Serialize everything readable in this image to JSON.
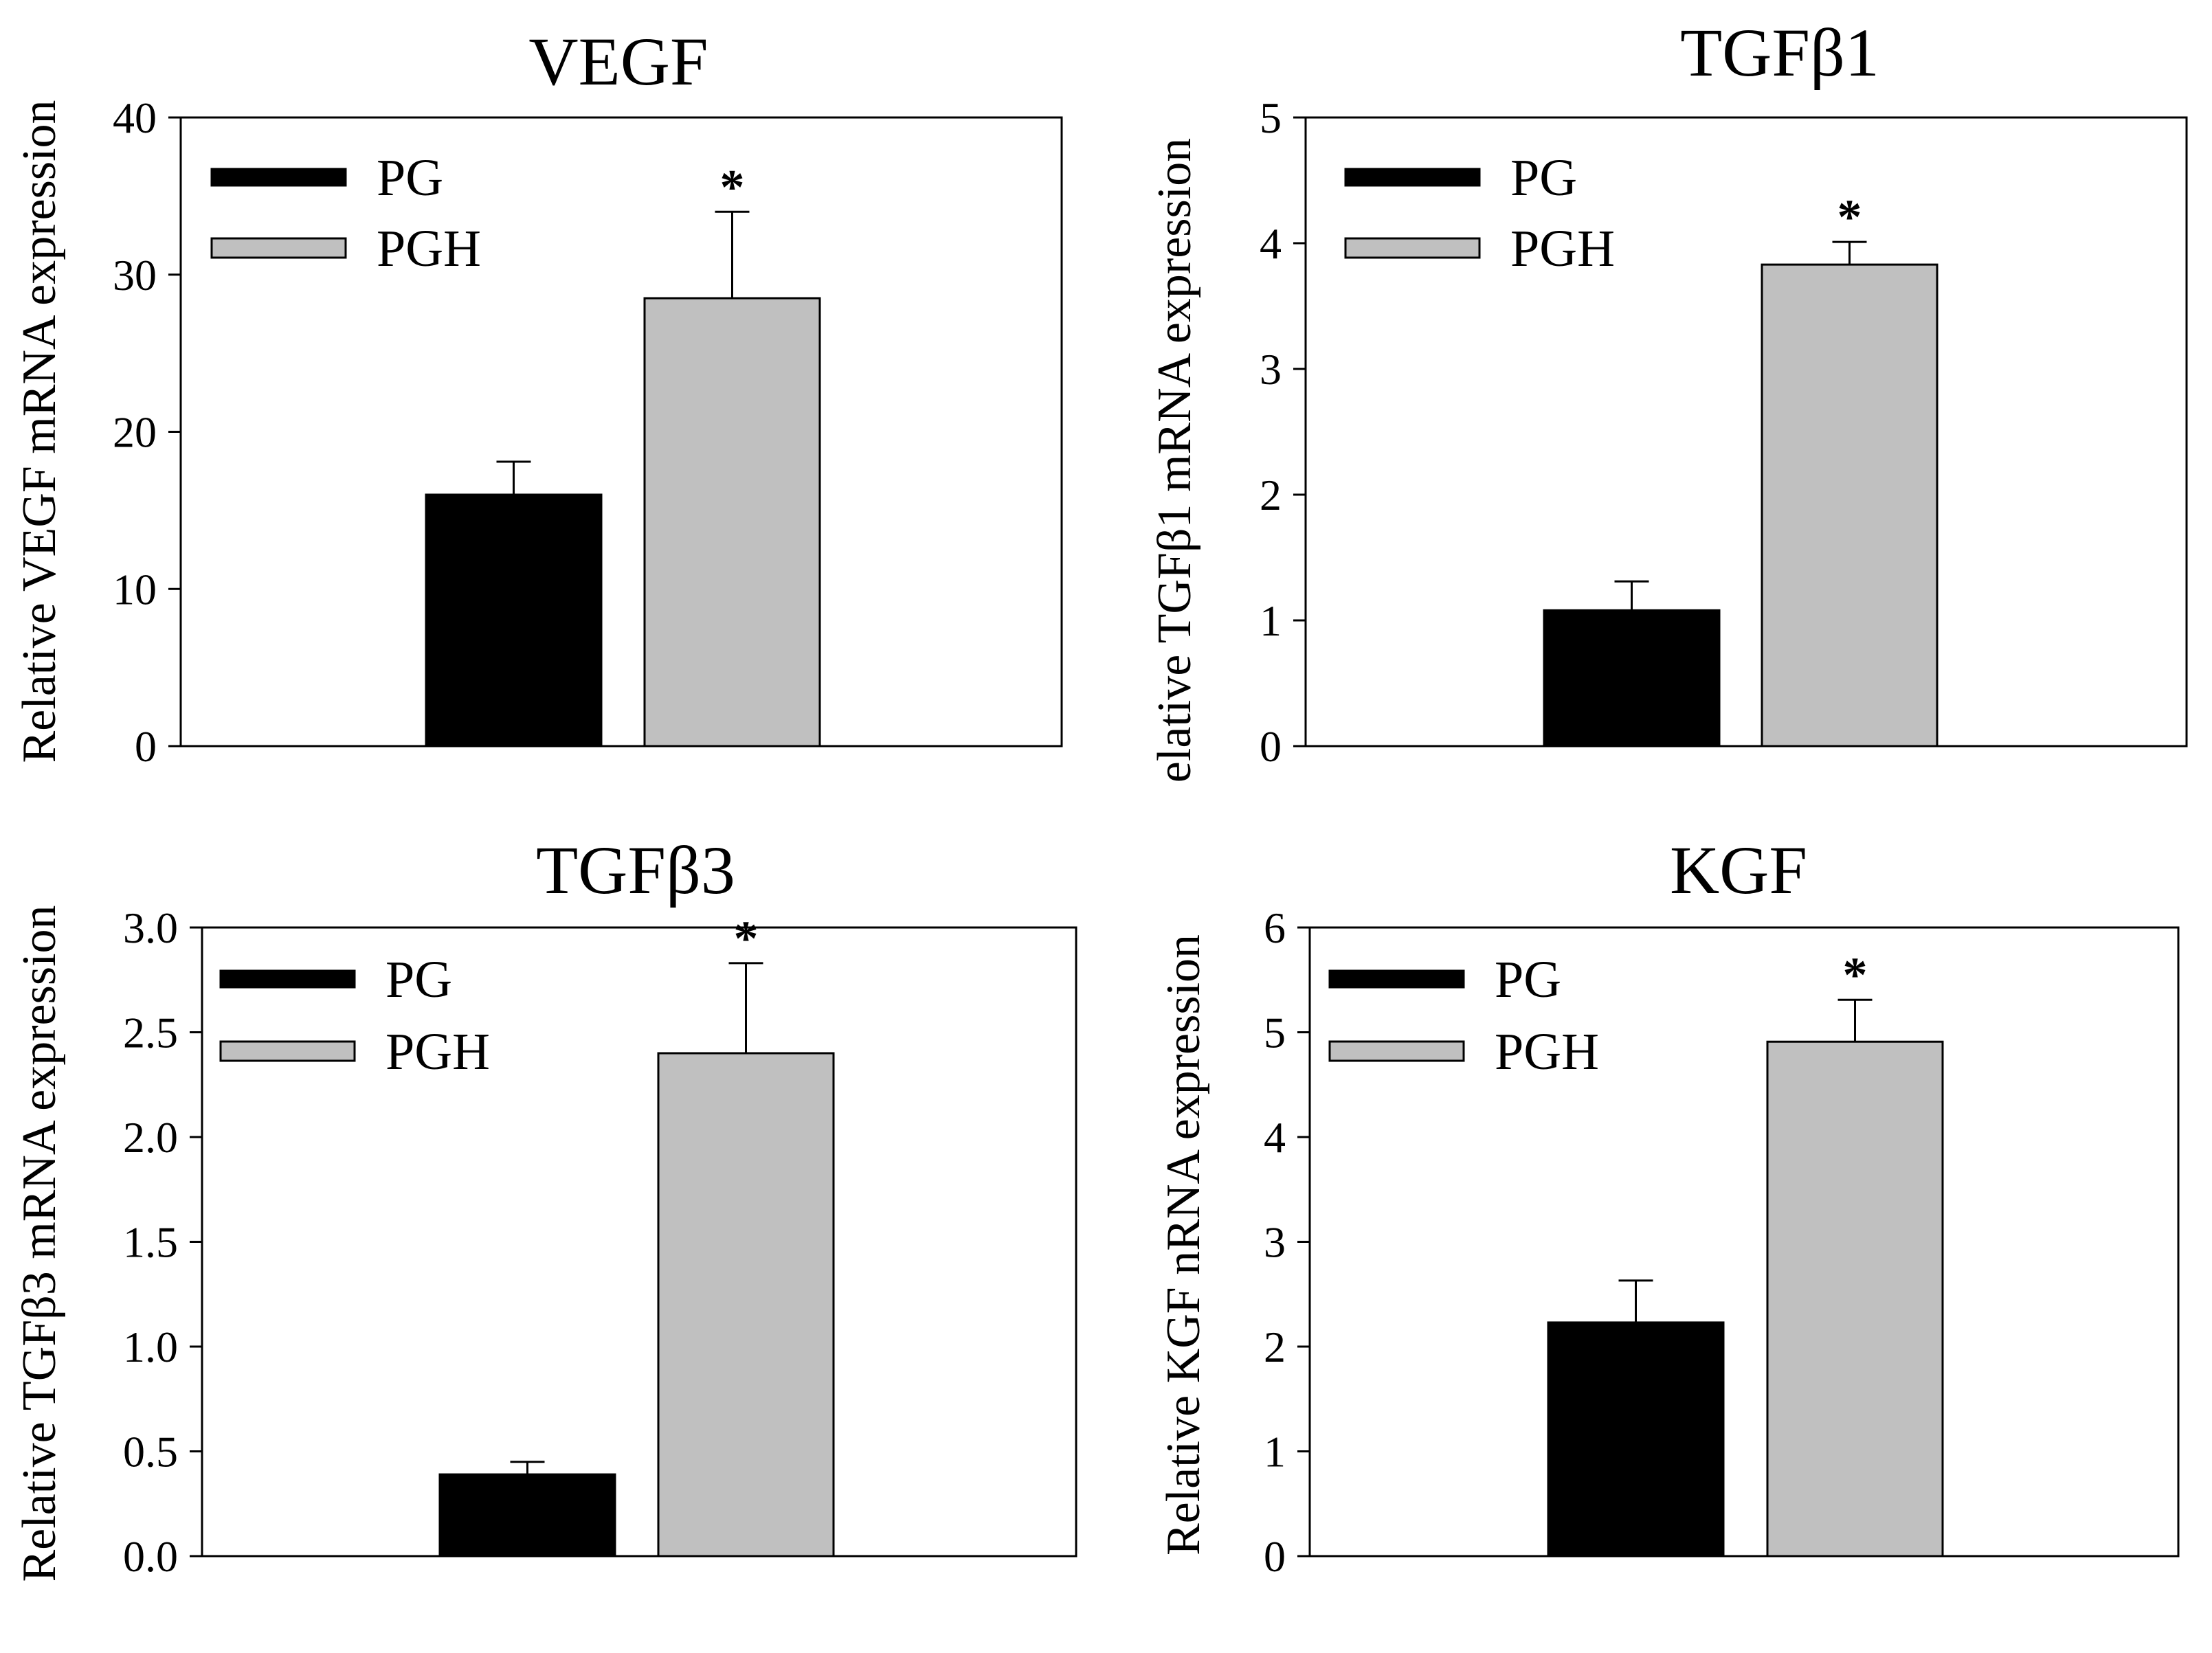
{
  "chart_data": [
    {
      "type": "bar",
      "title": "VEGF",
      "ylabel": "Relative VEGF mRNA expression",
      "ylim": [
        0,
        40
      ],
      "yticks": [
        "0",
        "10",
        "20",
        "30",
        "40"
      ],
      "series": [
        {
          "name": "PG",
          "color": "#000000",
          "value": 16,
          "error": 2.1
        },
        {
          "name": "PGH",
          "color": "#c0c0c0",
          "value": 28.5,
          "error": 5.5
        }
      ],
      "annotation": "*",
      "legend_position": "top-left"
    },
    {
      "type": "bar",
      "title": "TGFβ1",
      "ylabel": "elative TGFβ1 mRNA expression",
      "ylim": [
        0,
        5
      ],
      "yticks": [
        "0",
        "1",
        "2",
        "3",
        "4",
        "5"
      ],
      "series": [
        {
          "name": "PG",
          "color": "#000000",
          "value": 1.08,
          "error": 0.23
        },
        {
          "name": "PGH",
          "color": "#c0c0c0",
          "value": 3.83,
          "error": 0.18
        }
      ],
      "annotation": "*",
      "legend_position": "top-left"
    },
    {
      "type": "bar",
      "title": "TGFβ3",
      "ylabel": "Relative TGFβ3 mRNA expression",
      "ylim": [
        0,
        3.2
      ],
      "yticks": [
        "0.0",
        "0.5",
        "1.0",
        "1.5",
        "2.0",
        "2.5",
        "3.0"
      ],
      "series": [
        {
          "name": "PG",
          "color": "#000000",
          "value": 0.39,
          "error": 0.06
        },
        {
          "name": "PGH",
          "color": "#c0c0c0",
          "value": 2.4,
          "error": 0.43
        }
      ],
      "annotation": "*",
      "legend_position": "top-left"
    },
    {
      "type": "bar",
      "title": "KGF",
      "ylabel": "Relative KGF nRNA expression",
      "ylim": [
        0,
        6
      ],
      "yticks": [
        "0",
        "1",
        "2",
        "3",
        "4",
        "5",
        "6"
      ],
      "series": [
        {
          "name": "PG",
          "color": "#000000",
          "value": 2.23,
          "error": 0.4
        },
        {
          "name": "PGH",
          "color": "#c0c0c0",
          "value": 4.91,
          "error": 0.4
        }
      ],
      "annotation": "*",
      "legend_position": "top-left"
    }
  ]
}
